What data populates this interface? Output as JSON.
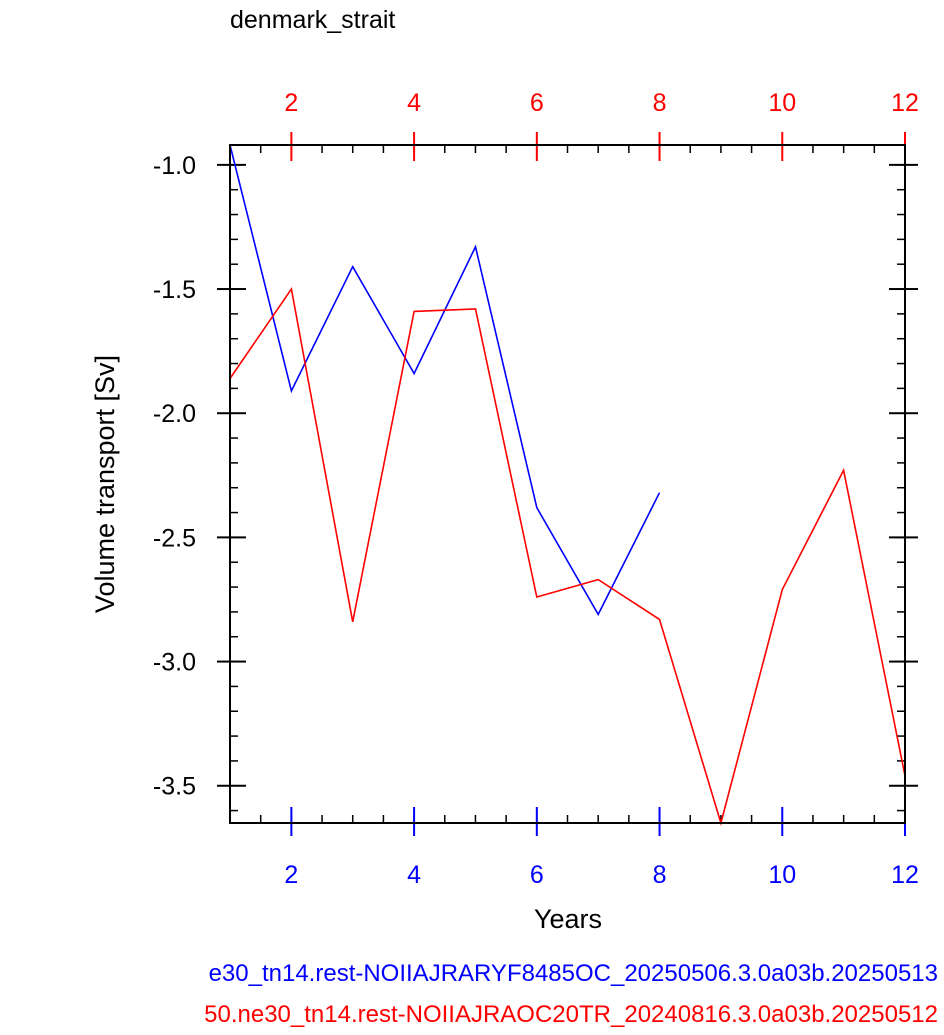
{
  "chart_data": {
    "type": "line",
    "title": "denmark_strait",
    "xlabel": "Years",
    "ylabel": "Volume transport [Sv]",
    "xlim": [
      1,
      12
    ],
    "ylim": [
      -3.65,
      -0.92
    ],
    "y_ticks": [
      -1.0,
      -1.5,
      -2.0,
      -2.5,
      -3.0,
      -3.5
    ],
    "y_tick_labels": [
      "-1.0",
      "-1.5",
      "-2.0",
      "-2.5",
      "-3.0",
      "-3.5"
    ],
    "x_ticks": [
      2,
      4,
      6,
      8,
      10,
      12
    ],
    "x_tick_labels": [
      "2",
      "4",
      "6",
      "8",
      "10",
      "12"
    ],
    "top_x_ticks": [
      2,
      4,
      6,
      8,
      10,
      12
    ],
    "top_x_tick_labels": [
      "2",
      "4",
      "6",
      "8",
      "10",
      "12"
    ],
    "grid": false,
    "colors": {
      "blue": "#0000ff",
      "red": "#ff0000"
    },
    "series": [
      {
        "color": "#0000ff",
        "x": [
          1,
          2,
          3,
          4,
          5,
          6,
          7,
          8
        ],
        "values": [
          -0.92,
          -1.91,
          -1.41,
          -1.84,
          -1.33,
          -2.38,
          -2.81,
          -2.32
        ]
      },
      {
        "color": "#ff0000",
        "x": [
          1,
          2,
          3,
          4,
          5,
          6,
          7,
          8,
          9,
          10,
          11,
          12
        ],
        "values": [
          -1.86,
          -1.5,
          -2.84,
          -1.59,
          -1.58,
          -2.74,
          -2.67,
          -2.83,
          -3.65,
          -2.71,
          -2.23,
          -3.46
        ]
      }
    ],
    "legend": [
      {
        "text": "e30_tn14.rest-NOIIAJRARYF8485OC_20250506.3.0a03b.20250513",
        "color": "#0000ff"
      },
      {
        "text": "50.ne30_tn14.rest-NOIIAJRAOC20TR_20240816.3.0a03b.20250512",
        "color": "#ff0000"
      }
    ]
  }
}
